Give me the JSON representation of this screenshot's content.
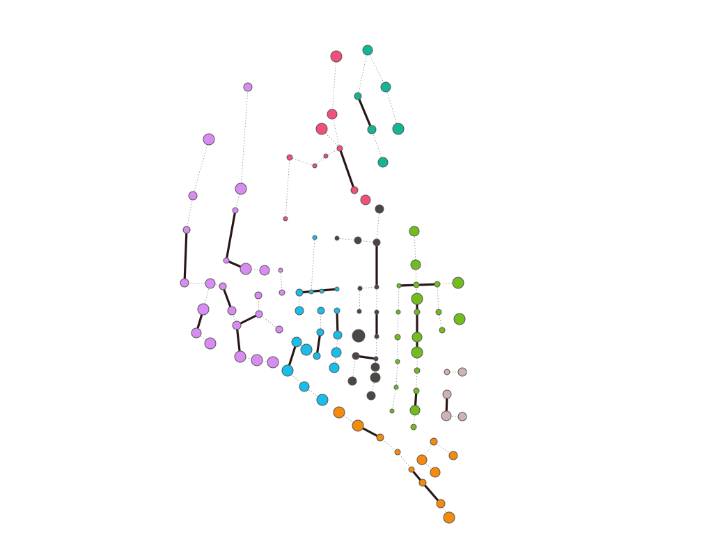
{
  "graph": {
    "background": "#ffffff",
    "thick_edge_color": "#2a1616",
    "thin_edge_color": "#8a8a8a",
    "clusters": [
      {
        "name": "pink",
        "color": "#f05079"
      },
      {
        "name": "teal",
        "color": "#14b595"
      },
      {
        "name": "violet",
        "color": "#d88cf2"
      },
      {
        "name": "cyan",
        "color": "#19bdea"
      },
      {
        "name": "dark",
        "color": "#4a4744"
      },
      {
        "name": "green",
        "color": "#72bd1d"
      },
      {
        "name": "rose",
        "color": "#cfb3b3"
      },
      {
        "name": "orange",
        "color": "#f58a0c"
      }
    ],
    "node_count": 117
  }
}
